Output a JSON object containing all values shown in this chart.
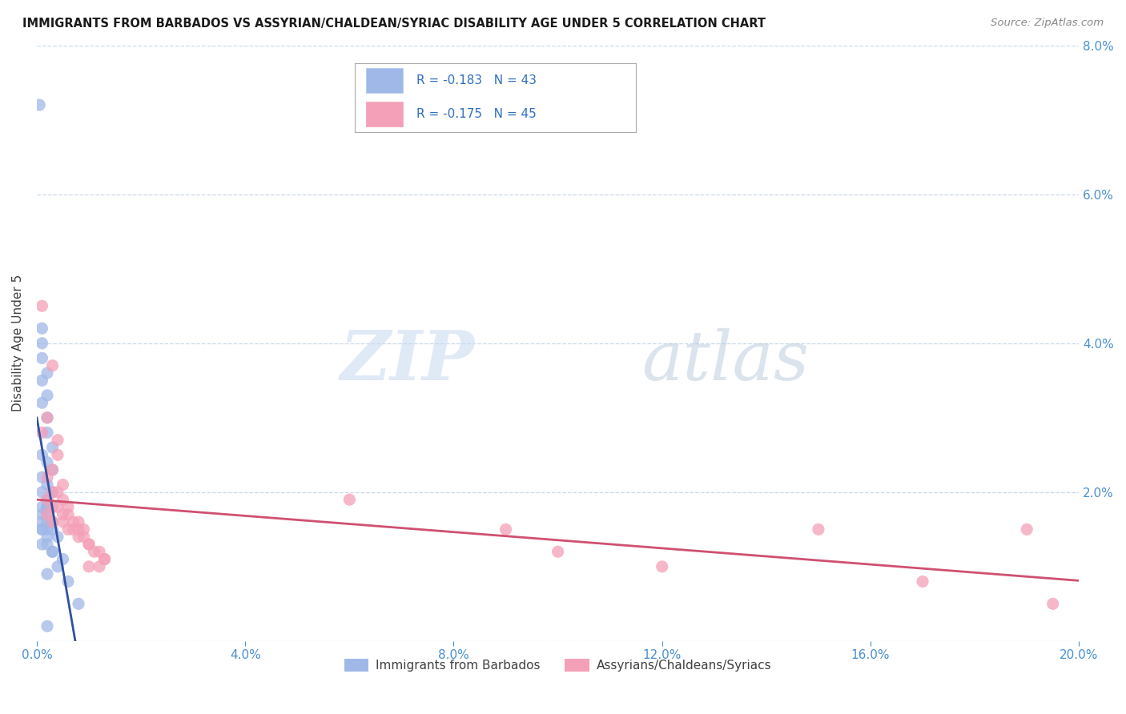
{
  "title": "IMMIGRANTS FROM BARBADOS VS ASSYRIAN/CHALDEAN/SYRIAC DISABILITY AGE UNDER 5 CORRELATION CHART",
  "source": "Source: ZipAtlas.com",
  "ylabel": "Disability Age Under 5",
  "x_min": 0.0,
  "x_max": 0.2,
  "y_min": 0.0,
  "y_max": 0.08,
  "x_ticks": [
    0.0,
    0.04,
    0.08,
    0.12,
    0.16,
    0.2
  ],
  "x_tick_labels": [
    "0.0%",
    "4.0%",
    "8.0%",
    "12.0%",
    "16.0%",
    "20.0%"
  ],
  "y_ticks": [
    0.0,
    0.02,
    0.04,
    0.06,
    0.08
  ],
  "y_tick_labels_right": [
    "",
    "2.0%",
    "4.0%",
    "6.0%",
    "8.0%"
  ],
  "barbados_color": "#a0b8e8",
  "assyrian_color": "#f4a0b8",
  "trendline_barbados_color": "#3050a0",
  "trendline_assyrian_color": "#d05070",
  "background_color": "#ffffff",
  "watermark_zip": "ZIP",
  "watermark_atlas": "atlas",
  "legend_box_color": "#a0b8e8",
  "legend_box_color2": "#f4a0b8",
  "legend_text1": "R = -0.183   N = 43",
  "legend_text2": "R = -0.175   N = 45",
  "bottom_legend1": "Immigrants from Barbados",
  "bottom_legend2": "Assyrians/Chaldeans/Syriacs",
  "barbados_points": [
    [
      0.0005,
      0.072
    ],
    [
      0.001,
      0.042
    ],
    [
      0.001,
      0.04
    ],
    [
      0.001,
      0.038
    ],
    [
      0.002,
      0.036
    ],
    [
      0.001,
      0.035
    ],
    [
      0.002,
      0.033
    ],
    [
      0.001,
      0.032
    ],
    [
      0.002,
      0.03
    ],
    [
      0.002,
      0.028
    ],
    [
      0.003,
      0.026
    ],
    [
      0.001,
      0.025
    ],
    [
      0.002,
      0.024
    ],
    [
      0.003,
      0.023
    ],
    [
      0.001,
      0.022
    ],
    [
      0.002,
      0.021
    ],
    [
      0.001,
      0.02
    ],
    [
      0.003,
      0.02
    ],
    [
      0.002,
      0.019
    ],
    [
      0.002,
      0.018
    ],
    [
      0.001,
      0.018
    ],
    [
      0.002,
      0.018
    ],
    [
      0.001,
      0.017
    ],
    [
      0.002,
      0.017
    ],
    [
      0.001,
      0.016
    ],
    [
      0.003,
      0.016
    ],
    [
      0.002,
      0.016
    ],
    [
      0.001,
      0.015
    ],
    [
      0.002,
      0.015
    ],
    [
      0.001,
      0.015
    ],
    [
      0.003,
      0.015
    ],
    [
      0.002,
      0.014
    ],
    [
      0.004,
      0.014
    ],
    [
      0.001,
      0.013
    ],
    [
      0.002,
      0.013
    ],
    [
      0.003,
      0.012
    ],
    [
      0.003,
      0.012
    ],
    [
      0.005,
      0.011
    ],
    [
      0.004,
      0.01
    ],
    [
      0.002,
      0.009
    ],
    [
      0.006,
      0.008
    ],
    [
      0.008,
      0.005
    ],
    [
      0.002,
      0.002
    ]
  ],
  "assyrian_points": [
    [
      0.001,
      0.045
    ],
    [
      0.003,
      0.037
    ],
    [
      0.002,
      0.03
    ],
    [
      0.001,
      0.028
    ],
    [
      0.004,
      0.027
    ],
    [
      0.004,
      0.025
    ],
    [
      0.003,
      0.023
    ],
    [
      0.002,
      0.022
    ],
    [
      0.005,
      0.021
    ],
    [
      0.003,
      0.02
    ],
    [
      0.004,
      0.02
    ],
    [
      0.002,
      0.019
    ],
    [
      0.005,
      0.019
    ],
    [
      0.003,
      0.018
    ],
    [
      0.006,
      0.018
    ],
    [
      0.004,
      0.018
    ],
    [
      0.005,
      0.017
    ],
    [
      0.006,
      0.017
    ],
    [
      0.002,
      0.017
    ],
    [
      0.007,
      0.016
    ],
    [
      0.008,
      0.016
    ],
    [
      0.003,
      0.016
    ],
    [
      0.005,
      0.016
    ],
    [
      0.006,
      0.015
    ],
    [
      0.008,
      0.015
    ],
    [
      0.009,
      0.015
    ],
    [
      0.007,
      0.015
    ],
    [
      0.009,
      0.014
    ],
    [
      0.008,
      0.014
    ],
    [
      0.01,
      0.013
    ],
    [
      0.01,
      0.013
    ],
    [
      0.011,
      0.012
    ],
    [
      0.012,
      0.012
    ],
    [
      0.013,
      0.011
    ],
    [
      0.013,
      0.011
    ],
    [
      0.01,
      0.01
    ],
    [
      0.012,
      0.01
    ],
    [
      0.06,
      0.019
    ],
    [
      0.09,
      0.015
    ],
    [
      0.1,
      0.012
    ],
    [
      0.12,
      0.01
    ],
    [
      0.15,
      0.015
    ],
    [
      0.17,
      0.008
    ],
    [
      0.19,
      0.015
    ],
    [
      0.195,
      0.005
    ]
  ]
}
